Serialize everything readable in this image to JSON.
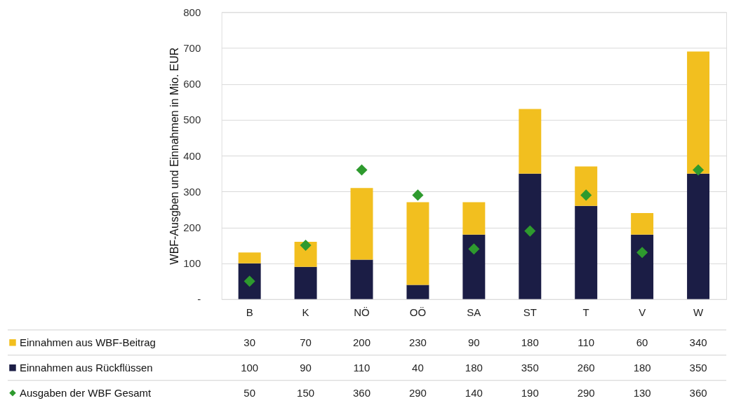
{
  "chart_data": {
    "type": "bar",
    "stacked": true,
    "ylabel": "WBF-Ausgben und Einnahmen in Mio. EUR",
    "categories": [
      "B",
      "K",
      "NÖ",
      "OÖ",
      "SA",
      "ST",
      "T",
      "V",
      "W"
    ],
    "series": [
      {
        "name": "Einnahmen aus Rückflüssen",
        "color": "#1b1d45",
        "values": [
          100,
          90,
          110,
          40,
          180,
          350,
          260,
          180,
          350
        ]
      },
      {
        "name": "Einnahmen aus WBF-Beitrag",
        "color": "#f2bf1f",
        "values": [
          30,
          70,
          200,
          230,
          90,
          180,
          110,
          60,
          340
        ]
      },
      {
        "name": "Ausgaben der WBF Gesamt",
        "type": "scatter",
        "color": "#2e9a2e",
        "marker": "diamond",
        "values": [
          50,
          150,
          360,
          290,
          140,
          190,
          290,
          130,
          360
        ]
      }
    ],
    "ylim": [
      0,
      800
    ],
    "yticks": [
      {
        "value": 0,
        "label": "-"
      },
      100,
      200,
      300,
      400,
      500,
      600,
      700,
      800
    ],
    "grid": "y",
    "legend": "bottom left",
    "data_labels": true
  }
}
